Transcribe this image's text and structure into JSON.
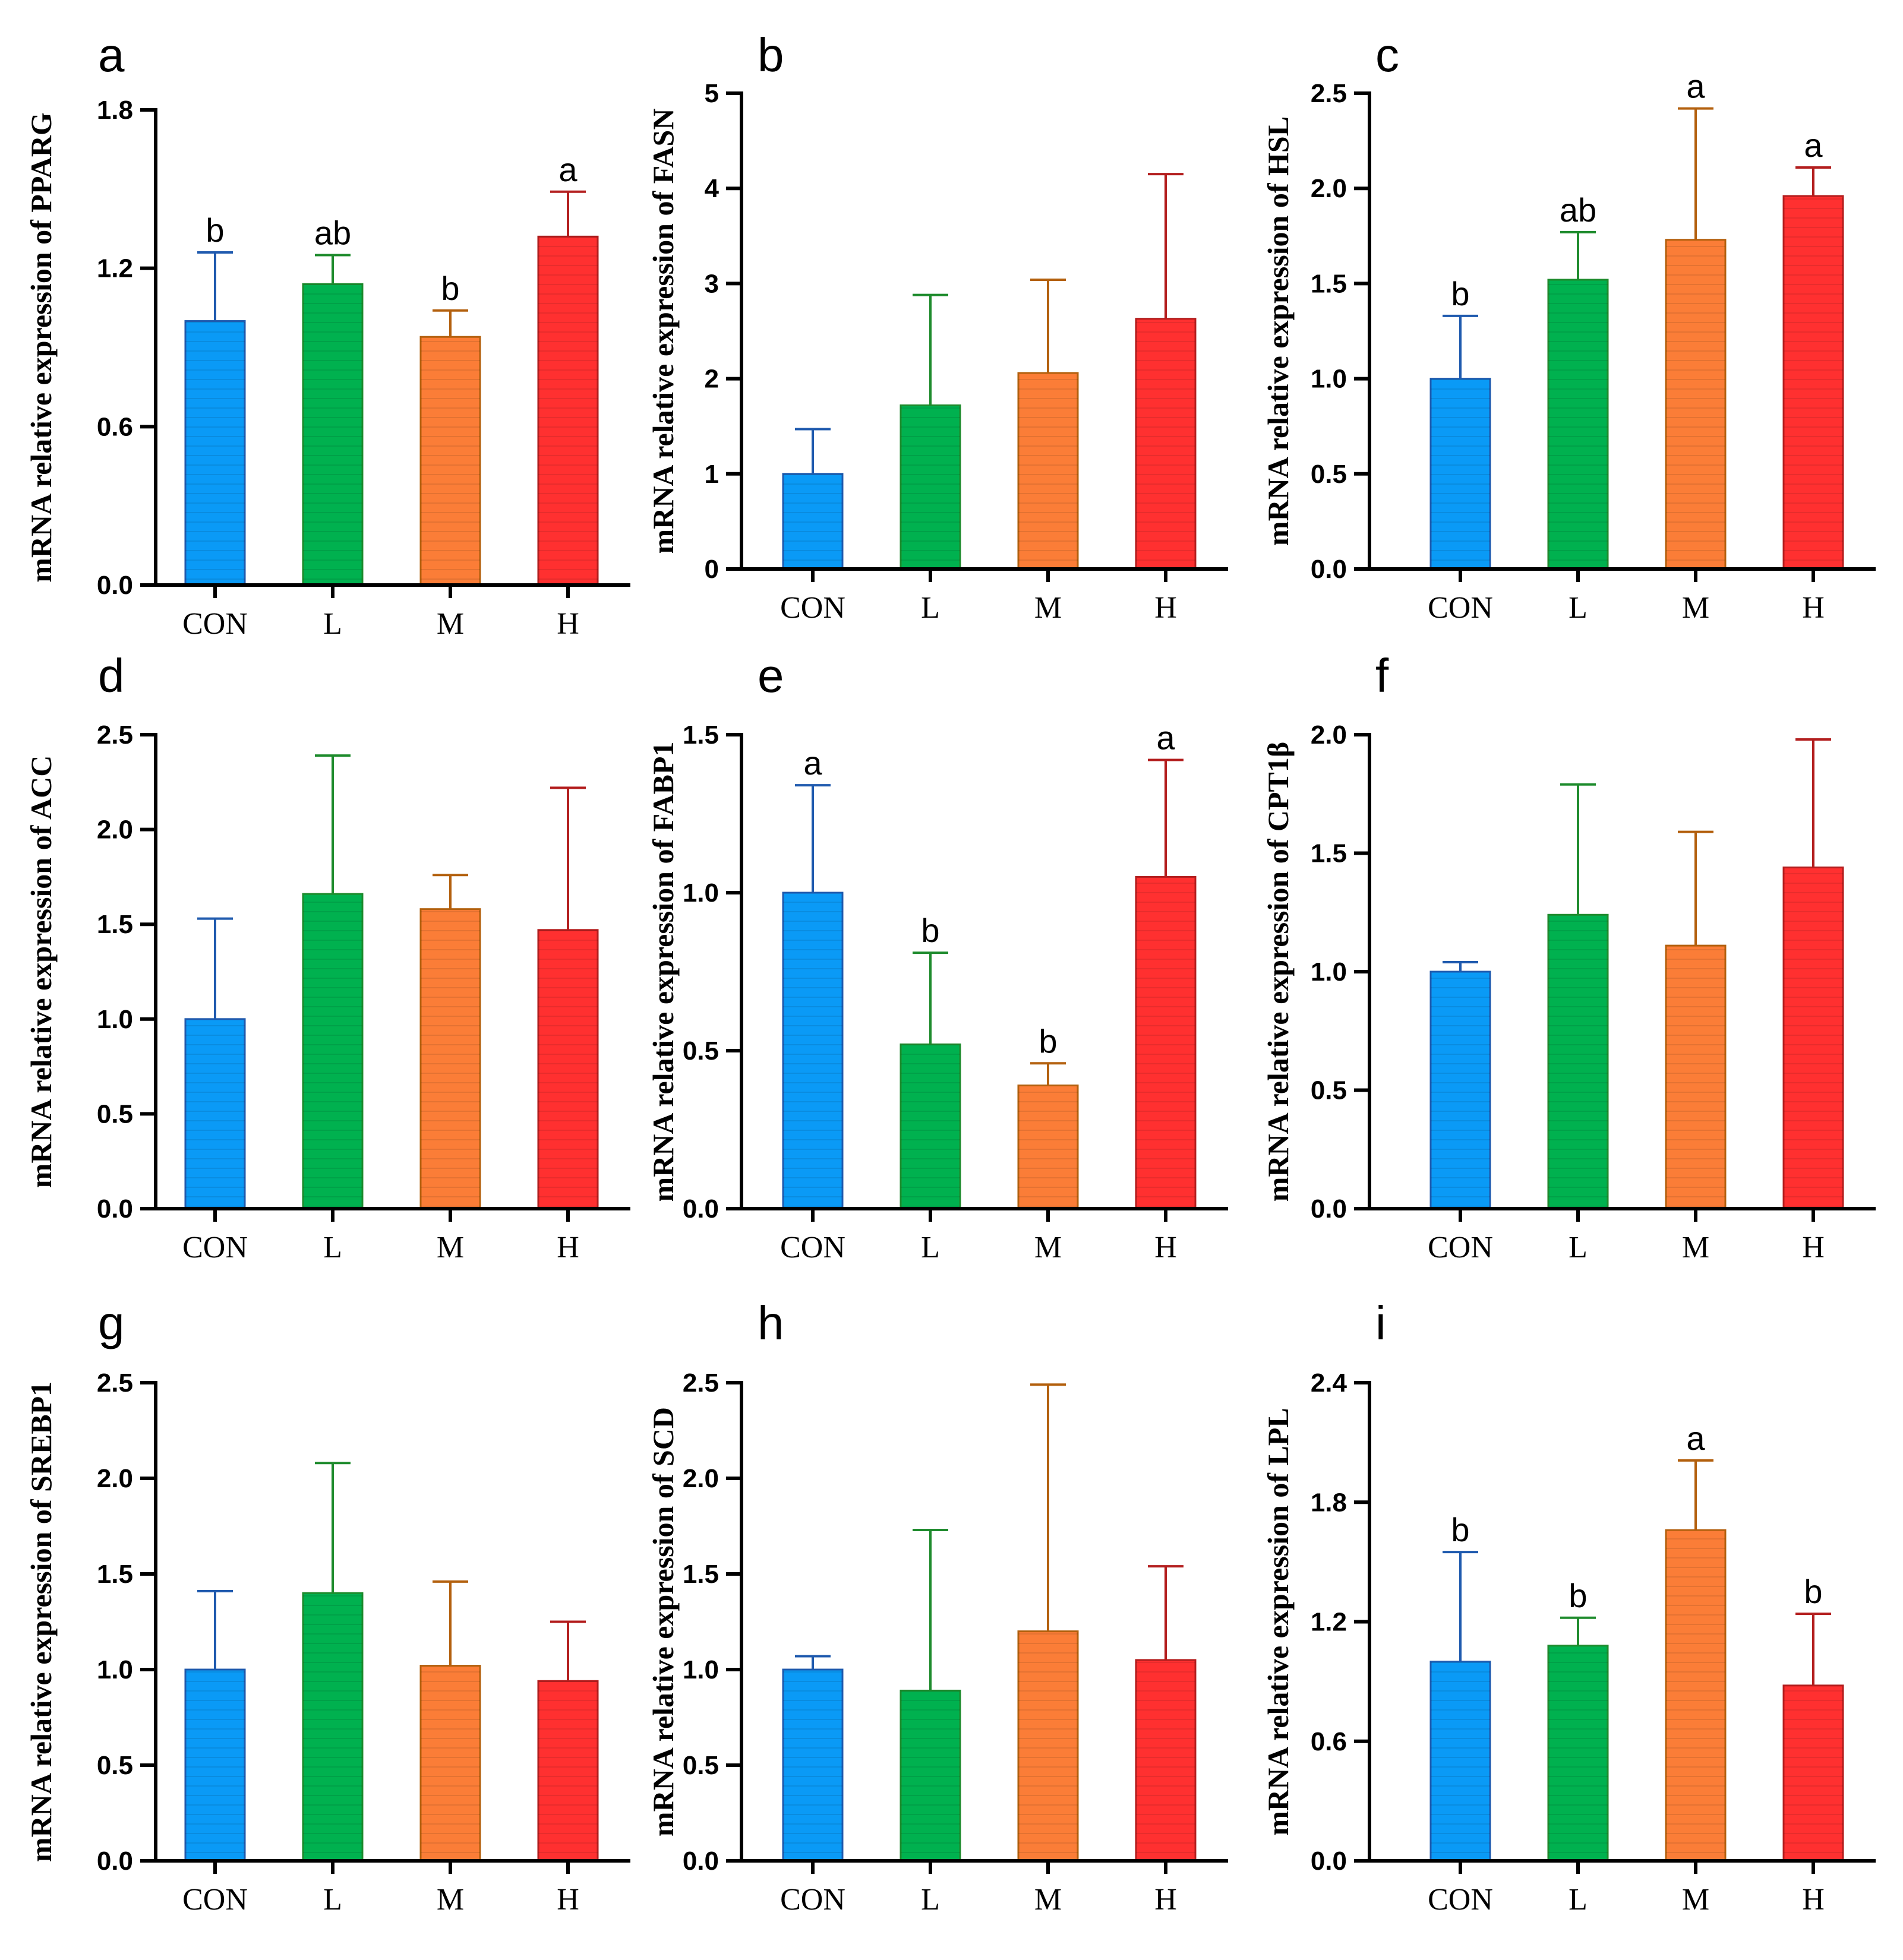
{
  "categories": [
    "CON",
    "L",
    "M",
    "H"
  ],
  "colors": {
    "fill": [
      "#0A9AF6",
      "#00B14F",
      "#FB7D37",
      "#FF3030"
    ],
    "edge": [
      "#1F5AAE",
      "#1E8B2D",
      "#B3600E",
      "#B31E1E"
    ],
    "stripe": "rgba(0,0,0,0.09)"
  },
  "chart_data": [
    {
      "type": "bar",
      "panel": "a",
      "ylabel": "mRNA relative expression of PPARG",
      "categories": [
        "CON",
        "L",
        "M",
        "H"
      ],
      "ylim": [
        0,
        1.8
      ],
      "yticks": [
        "0.0",
        "0.6",
        "1.2",
        "1.8"
      ],
      "values": [
        1.0,
        1.14,
        0.94,
        1.32
      ],
      "errors": [
        0.26,
        0.11,
        0.1,
        0.17
      ],
      "sig": [
        "b",
        "ab",
        "b",
        "a"
      ]
    },
    {
      "type": "bar",
      "panel": "b",
      "ylabel": "mRNA relative expression of FASN",
      "categories": [
        "CON",
        "L",
        "M",
        "H"
      ],
      "ylim": [
        0,
        5
      ],
      "yticks": [
        "0",
        "1",
        "2",
        "3",
        "4",
        "5"
      ],
      "values": [
        1.0,
        1.72,
        2.06,
        2.63
      ],
      "errors": [
        0.47,
        1.16,
        0.98,
        1.52
      ],
      "sig": [
        "",
        "",
        "",
        ""
      ]
    },
    {
      "type": "bar",
      "panel": "c",
      "ylabel": "mRNA relative expression of HSL",
      "categories": [
        "CON",
        "L",
        "M",
        "H"
      ],
      "ylim": [
        0,
        2.5
      ],
      "yticks": [
        "0.0",
        "0.5",
        "1.0",
        "1.5",
        "2.0",
        "2.5"
      ],
      "values": [
        1.0,
        1.52,
        1.73,
        1.96
      ],
      "errors": [
        0.33,
        0.25,
        0.69,
        0.15
      ],
      "sig": [
        "b",
        "ab",
        "a",
        "a"
      ]
    },
    {
      "type": "bar",
      "panel": "d",
      "ylabel": "mRNA relative expression of ACC",
      "categories": [
        "CON",
        "L",
        "M",
        "H"
      ],
      "ylim": [
        0,
        2.5
      ],
      "yticks": [
        "0.0",
        "0.5",
        "1.0",
        "1.5",
        "2.0",
        "2.5"
      ],
      "values": [
        1.0,
        1.66,
        1.58,
        1.47
      ],
      "errors": [
        0.53,
        0.73,
        0.18,
        0.75
      ],
      "sig": [
        "",
        "",
        "",
        ""
      ]
    },
    {
      "type": "bar",
      "panel": "e",
      "ylabel": "mRNA relative expression of FABP1",
      "categories": [
        "CON",
        "L",
        "M",
        "H"
      ],
      "ylim": [
        0,
        1.5
      ],
      "yticks": [
        "0.0",
        "0.5",
        "1.0",
        "1.5"
      ],
      "values": [
        1.0,
        0.52,
        0.39,
        1.05
      ],
      "errors": [
        0.34,
        0.29,
        0.07,
        0.37
      ],
      "sig": [
        "a",
        "b",
        "b",
        "a"
      ]
    },
    {
      "type": "bar",
      "panel": "f",
      "ylabel": "mRNA relative expression of CPT1β",
      "categories": [
        "CON",
        "L",
        "M",
        "H"
      ],
      "ylim": [
        0,
        2.0
      ],
      "yticks": [
        "0.0",
        "0.5",
        "1.0",
        "1.5",
        "2.0"
      ],
      "values": [
        1.0,
        1.24,
        1.11,
        1.44
      ],
      "errors": [
        0.04,
        0.55,
        0.48,
        0.54
      ],
      "sig": [
        "",
        "",
        "",
        ""
      ]
    },
    {
      "type": "bar",
      "panel": "g",
      "ylabel": "mRNA relative expression of SREBP1",
      "categories": [
        "CON",
        "L",
        "M",
        "H"
      ],
      "ylim": [
        0,
        2.5
      ],
      "yticks": [
        "0.0",
        "0.5",
        "1.0",
        "1.5",
        "2.0",
        "2.5"
      ],
      "values": [
        1.0,
        1.4,
        1.02,
        0.94
      ],
      "errors": [
        0.41,
        0.68,
        0.44,
        0.31
      ],
      "sig": [
        "",
        "",
        "",
        ""
      ]
    },
    {
      "type": "bar",
      "panel": "h",
      "ylabel": "mRNA relative expression of SCD",
      "categories": [
        "CON",
        "L",
        "M",
        "H"
      ],
      "ylim": [
        0,
        2.5
      ],
      "yticks": [
        "0.0",
        "0.5",
        "1.0",
        "1.5",
        "2.0",
        "2.5"
      ],
      "values": [
        1.0,
        0.89,
        1.2,
        1.05
      ],
      "errors": [
        0.07,
        0.84,
        1.29,
        0.49
      ],
      "sig": [
        "",
        "",
        "",
        ""
      ]
    },
    {
      "type": "bar",
      "panel": "i",
      "ylabel": "mRNA relative expression of LPL",
      "categories": [
        "CON",
        "L",
        "M",
        "H"
      ],
      "ylim": [
        0,
        2.4
      ],
      "yticks": [
        "0.0",
        "0.6",
        "1.2",
        "1.8",
        "2.4"
      ],
      "values": [
        1.0,
        1.08,
        1.66,
        0.88
      ],
      "errors": [
        0.55,
        0.14,
        0.35,
        0.36
      ],
      "sig": [
        "b",
        "b",
        "a",
        "b"
      ]
    }
  ]
}
